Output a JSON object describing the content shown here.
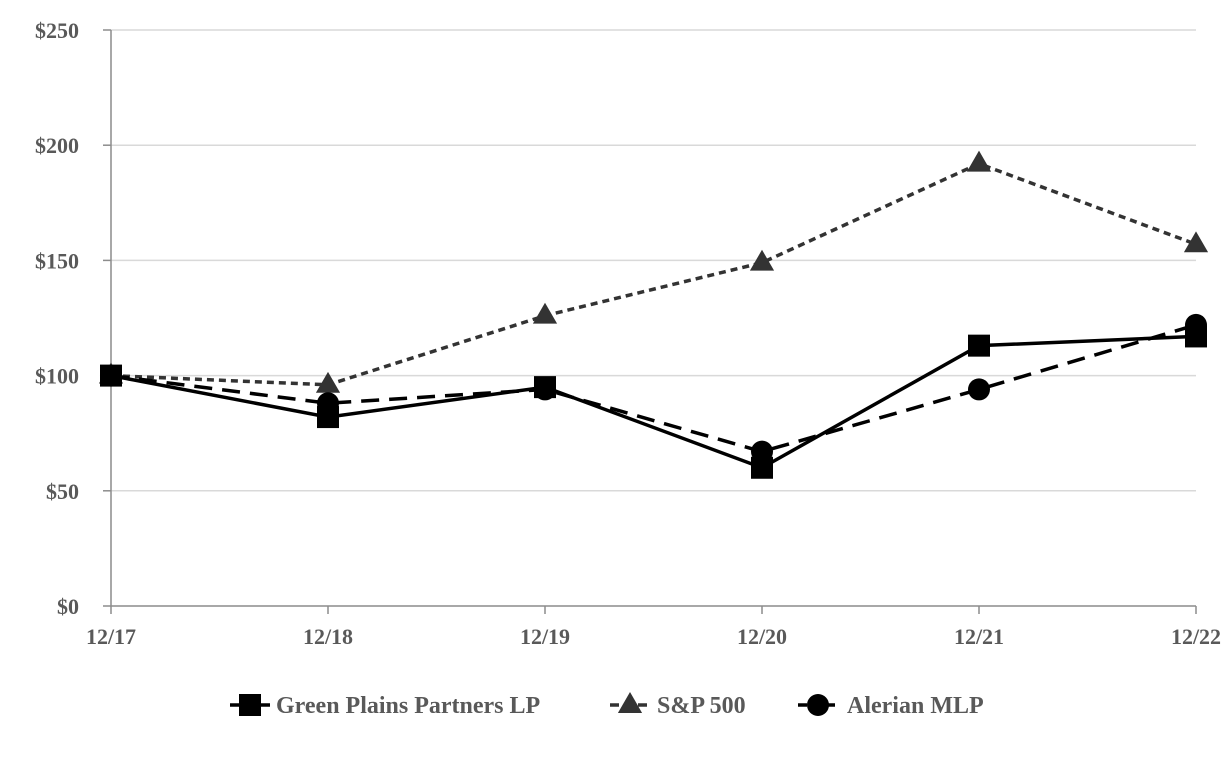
{
  "chart_data": {
    "type": "line",
    "title": "",
    "xlabel": "",
    "ylabel": "",
    "categories": [
      "12/17",
      "12/18",
      "12/19",
      "12/20",
      "12/21",
      "12/22"
    ],
    "y_ticks": [
      "$0",
      "$50",
      "$100",
      "$150",
      "$200",
      "$250"
    ],
    "ylim": [
      0,
      250
    ],
    "grid": "horizontal",
    "legend_position": "bottom",
    "series": [
      {
        "name": "Green Plains Partners LP",
        "values": [
          100,
          82,
          95,
          60,
          113,
          117
        ],
        "marker": "square",
        "line": "solid"
      },
      {
        "name": "S&P 500",
        "values": [
          100,
          96,
          126,
          149,
          192,
          157
        ],
        "marker": "triangle",
        "line": "dotted"
      },
      {
        "name": "Alerian MLP",
        "values": [
          100,
          88,
          94,
          67,
          94,
          122
        ],
        "marker": "circle",
        "line": "dashed"
      }
    ],
    "colors": {
      "line": "#000000",
      "dotted_line": "#333333",
      "grid": "#d9d9d9",
      "axis": "#8c8c8c",
      "text": "#595959"
    }
  }
}
